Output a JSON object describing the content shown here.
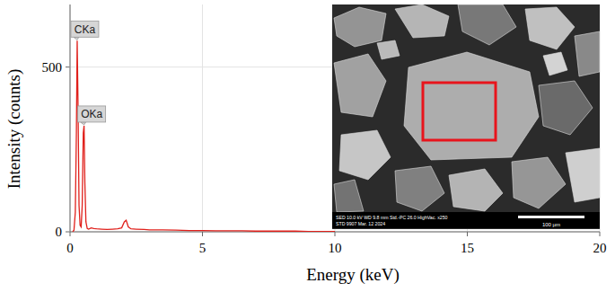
{
  "chart_data": {
    "type": "line",
    "x_label": "Energy (keV)",
    "y_label": "Intensity (counts)",
    "x": [
      0.1,
      0.15,
      0.2,
      0.24,
      0.27,
      0.3,
      0.34,
      0.38,
      0.42,
      0.46,
      0.5,
      0.53,
      0.56,
      0.6,
      0.65,
      0.7,
      0.8,
      0.9,
      1.0,
      1.2,
      1.4,
      1.6,
      1.8,
      1.95,
      2.05,
      2.12,
      2.2,
      2.3,
      2.5,
      2.8,
      3.0,
      3.5,
      4.0,
      4.5,
      5.0,
      5.5,
      6.0,
      6.5,
      7.0,
      7.5,
      8.0,
      8.5,
      9.0,
      9.5,
      10.0
    ],
    "values": [
      0,
      5,
      60,
      300,
      580,
      400,
      80,
      20,
      15,
      80,
      300,
      322,
      150,
      30,
      10,
      8,
      12,
      10,
      9,
      8,
      7,
      8,
      9,
      12,
      30,
      35,
      15,
      9,
      8,
      7,
      6,
      6,
      5,
      4,
      4,
      3,
      3,
      3,
      2,
      2,
      2,
      2,
      1,
      1,
      1
    ],
    "color": "#e0201b",
    "xlim": [
      0,
      20
    ],
    "xticks": [
      0,
      5,
      10,
      15,
      20
    ],
    "ylim": [
      0,
      690
    ],
    "yticks": [
      0,
      500
    ],
    "grid": true,
    "annotations": [
      {
        "text": "CKa",
        "x": 0.27,
        "y": 580
      },
      {
        "text": "OKa",
        "x": 0.53,
        "y": 322
      }
    ],
    "inset": {
      "info_line1": "SED  10.0 kV  WD 9.8 mm  Std.-PC 26.0  HighVac.  x250",
      "info_line2": "STD  9907  Mar. 12 2024",
      "scale_bar": "100 µm"
    }
  }
}
